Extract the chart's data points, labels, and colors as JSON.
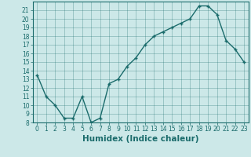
{
  "x": [
    0,
    1,
    2,
    3,
    4,
    5,
    6,
    7,
    8,
    9,
    10,
    11,
    12,
    13,
    14,
    15,
    16,
    17,
    18,
    19,
    20,
    21,
    22,
    23
  ],
  "y": [
    13.5,
    11,
    10,
    8.5,
    8.5,
    11,
    8,
    8.5,
    12.5,
    13,
    14.5,
    15.5,
    17,
    18,
    18.5,
    19,
    19.5,
    20,
    21.5,
    21.5,
    20.5,
    17.5,
    16.5,
    15
  ],
  "xlabel": "Humidex (Indice chaleur)",
  "bg_color": "#cce8e8",
  "line_color": "#1a6b6b",
  "marker": "+",
  "ylim": [
    8,
    22
  ],
  "xlim": [
    -0.5,
    23.5
  ],
  "yticks": [
    8,
    9,
    10,
    11,
    12,
    13,
    14,
    15,
    16,
    17,
    18,
    19,
    20,
    21
  ],
  "xticks": [
    0,
    1,
    2,
    3,
    4,
    5,
    6,
    7,
    8,
    9,
    10,
    11,
    12,
    13,
    14,
    15,
    16,
    17,
    18,
    19,
    20,
    21,
    22,
    23
  ],
  "tick_fontsize": 5.5,
  "xlabel_fontsize": 7.5,
  "linewidth": 1.0,
  "markersize": 3.5
}
